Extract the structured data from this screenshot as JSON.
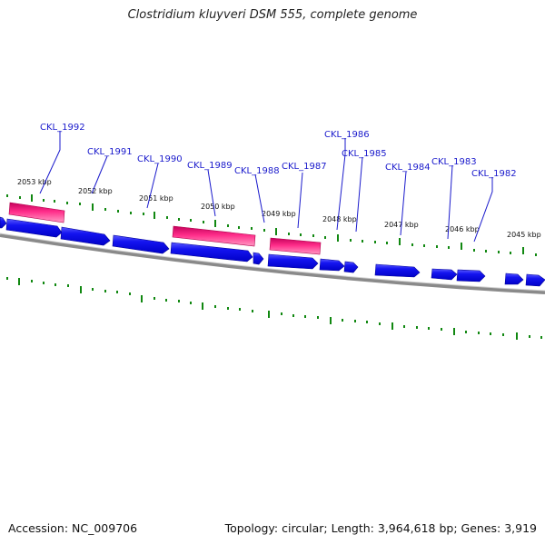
{
  "title": "Clostridium kluyveri DSM 555, complete genome",
  "footer": {
    "accession": "Accession: NC_009706",
    "topology": "Topology: circular; Length: 3,964,618 bp; Genes: 3,919"
  },
  "colors": {
    "gene_blue": "#1111ee",
    "gene_blue_light": "#6b6bff",
    "rna_pink": "#ff2d8a",
    "rna_pink_dark": "#c8005a",
    "label_blue": "#1a1acc",
    "tick_green": "#118811",
    "backbone_gray": "#777777"
  },
  "kbp_ticks": [
    {
      "position_kbp": 2053,
      "label": "2053 kbp"
    },
    {
      "position_kbp": 2052,
      "label": "2052 kbp"
    },
    {
      "position_kbp": 2051,
      "label": "2051 kbp"
    },
    {
      "position_kbp": 2050,
      "label": "2050 kbp"
    },
    {
      "position_kbp": 2049,
      "label": "2049 kbp"
    },
    {
      "position_kbp": 2048,
      "label": "2048 kbp"
    },
    {
      "position_kbp": 2047,
      "label": "2047 kbp"
    },
    {
      "position_kbp": 2046,
      "label": "2046 kbp"
    },
    {
      "position_kbp": 2045,
      "label": "2045 kbp"
    }
  ],
  "genes": [
    {
      "name": "CKL_1992"
    },
    {
      "name": "CKL_1991"
    },
    {
      "name": "CKL_1990"
    },
    {
      "name": "CKL_1989"
    },
    {
      "name": "CKL_1988"
    },
    {
      "name": "CKL_1987"
    },
    {
      "name": "CKL_1986"
    },
    {
      "name": "CKL_1985"
    },
    {
      "name": "CKL_1984"
    },
    {
      "name": "CKL_1983"
    },
    {
      "name": "CKL_1982"
    }
  ]
}
